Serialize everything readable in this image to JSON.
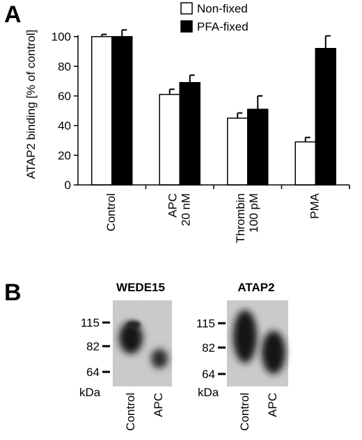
{
  "panel_a_label": "A",
  "panel_b_label": "B",
  "chart_data": {
    "type": "bar",
    "categories": [
      "Control",
      "APC\n20 nM",
      "Thrombin\n100 pM",
      "PMA"
    ],
    "series": [
      {
        "name": "Non-fixed",
        "values": [
          100,
          61,
          45,
          29
        ],
        "errors": [
          1.5,
          3.5,
          3.5,
          3
        ],
        "color": "#ffffff"
      },
      {
        "name": "PFA-fixed",
        "values": [
          100,
          69,
          51,
          92
        ],
        "errors": [
          4.5,
          5,
          9,
          8.5
        ],
        "color": "#000000"
      }
    ],
    "title": "",
    "xlabel": "",
    "ylabel": "ATAP2 binding [% of control]",
    "ylim": [
      0,
      120
    ],
    "yticks": [
      0,
      20,
      40,
      60,
      80,
      100
    ],
    "legend_position": "top-right",
    "grid": false
  },
  "blots": [
    {
      "title": "WEDE15",
      "markers": [
        "115",
        "82",
        "64"
      ],
      "unit": "kDa",
      "lanes": [
        "Control",
        "APC"
      ]
    },
    {
      "title": "ATAP2",
      "markers": [
        "115",
        "82",
        "64"
      ],
      "unit": "kDa",
      "lanes": [
        "Control",
        "APC"
      ]
    }
  ]
}
